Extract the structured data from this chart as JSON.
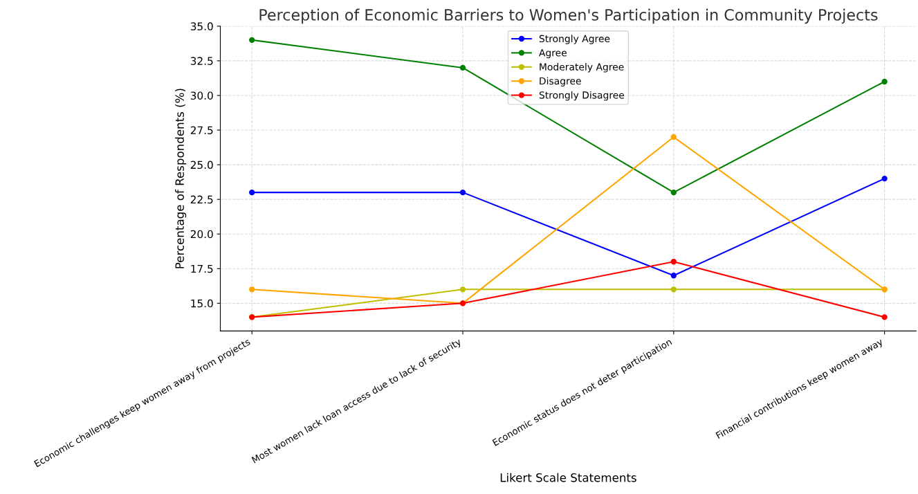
{
  "chart_data": {
    "type": "line",
    "title": "Perception of Economic Barriers to Women's Participation in Community Projects",
    "xlabel": "Likert Scale Statements",
    "ylabel": "Percentage of Respondents (%)",
    "categories": [
      "Economic challenges keep women away from projects",
      "Most women lack loan access due to lack of security",
      "Economic status does not deter participation",
      "Financial contributions keep women away"
    ],
    "series": [
      {
        "name": "Strongly Agree",
        "color": "#0000ff",
        "values": [
          23,
          23,
          17,
          24
        ]
      },
      {
        "name": "Agree",
        "color": "#008000",
        "values": [
          34,
          32,
          23,
          31
        ]
      },
      {
        "name": "Moderately Agree",
        "color": "#bfbf00",
        "values": [
          14,
          16,
          16,
          16
        ]
      },
      {
        "name": "Disagree",
        "color": "#ffa500",
        "values": [
          16,
          15,
          27,
          16
        ]
      },
      {
        "name": "Strongly Disagree",
        "color": "#ff0000",
        "values": [
          14,
          15,
          18,
          14
        ]
      }
    ],
    "ylim": [
      13,
      35
    ],
    "yticks": [
      {
        "value": 15,
        "label": "15.0"
      },
      {
        "value": 17.5,
        "label": "17.5"
      },
      {
        "value": 20,
        "label": "20.0"
      },
      {
        "value": 22.5,
        "label": "22.5"
      },
      {
        "value": 25,
        "label": "25.0"
      },
      {
        "value": 27.5,
        "label": "27.5"
      },
      {
        "value": 30,
        "label": "30.0"
      },
      {
        "value": 32.5,
        "label": "32.5"
      },
      {
        "value": 35,
        "label": "35.0"
      }
    ],
    "grid": true,
    "legend": "top",
    "marker": "circle",
    "line_style": "solid"
  }
}
